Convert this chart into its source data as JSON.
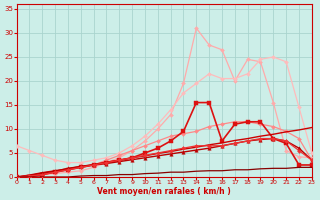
{
  "bg_color": "#cceee8",
  "grid_color": "#aad4ce",
  "xlabel": "Vent moyen/en rafales ( km/h )",
  "xlim": [
    0,
    23
  ],
  "ylim": [
    0,
    36
  ],
  "xticks": [
    0,
    1,
    2,
    3,
    4,
    5,
    6,
    7,
    8,
    9,
    10,
    11,
    12,
    13,
    14,
    15,
    16,
    17,
    18,
    19,
    20,
    21,
    22,
    23
  ],
  "yticks": [
    0,
    5,
    10,
    15,
    20,
    25,
    30,
    35
  ],
  "lines": [
    {
      "x": [
        0,
        1,
        2,
        3,
        4,
        5,
        6,
        7,
        8,
        9,
        10,
        11,
        12,
        13,
        14,
        15,
        16,
        17,
        18,
        19,
        20,
        21,
        22,
        23
      ],
      "y": [
        0,
        0.3,
        0.5,
        0.7,
        1.0,
        1.3,
        2.0,
        3.0,
        4.0,
        5.5,
        7.5,
        10.0,
        13.0,
        19.5,
        31.0,
        27.5,
        26.5,
        20.0,
        24.5,
        24.0,
        15.5,
        5.5,
        4.2,
        4.0
      ],
      "color": "#ffaaaa",
      "lw": 0.9,
      "marker": "D",
      "markersize": 2.0,
      "ls": "-"
    },
    {
      "x": [
        0,
        1,
        2,
        3,
        4,
        5,
        6,
        7,
        8,
        9,
        10,
        11,
        12,
        13,
        14,
        15,
        16,
        17,
        18,
        19,
        20,
        21,
        22,
        23
      ],
      "y": [
        6.5,
        5.5,
        4.5,
        3.5,
        3.0,
        3.0,
        3.5,
        4.0,
        5.0,
        6.5,
        8.5,
        11.0,
        14.0,
        17.5,
        19.5,
        21.5,
        20.5,
        20.5,
        21.5,
        24.5,
        25.0,
        24.0,
        14.5,
        5.0
      ],
      "color": "#ffbbbb",
      "lw": 0.9,
      "marker": "D",
      "markersize": 2.0,
      "ls": "-"
    },
    {
      "x": [
        0,
        1,
        2,
        3,
        4,
        5,
        6,
        7,
        8,
        9,
        10,
        11,
        12,
        13,
        14,
        15,
        16,
        17,
        18,
        19,
        20,
        21,
        22,
        23
      ],
      "y": [
        0,
        0,
        0.5,
        1.0,
        1.5,
        2.0,
        2.5,
        3.5,
        4.5,
        5.5,
        6.5,
        7.5,
        8.5,
        9.0,
        9.5,
        10.5,
        11.0,
        11.5,
        11.5,
        11.0,
        10.5,
        9.5,
        8.0,
        3.5
      ],
      "color": "#ff8888",
      "lw": 0.9,
      "marker": "D",
      "markersize": 2.0,
      "ls": "-"
    },
    {
      "x": [
        0,
        1,
        2,
        3,
        4,
        5,
        6,
        7,
        8,
        9,
        10,
        11,
        12,
        13,
        14,
        15,
        16,
        17,
        18,
        19,
        20,
        21,
        22,
        23
      ],
      "y": [
        0,
        0,
        0.5,
        1.0,
        1.5,
        2.0,
        2.5,
        3.0,
        3.5,
        4.0,
        5.0,
        6.0,
        7.5,
        9.5,
        15.5,
        15.5,
        7.5,
        11.0,
        11.5,
        11.5,
        8.0,
        7.0,
        2.5,
        2.5
      ],
      "color": "#dd1111",
      "lw": 1.2,
      "marker": "s",
      "markersize": 2.5,
      "ls": "-"
    },
    {
      "x": [
        0,
        1,
        2,
        3,
        4,
        5,
        6,
        7,
        8,
        9,
        10,
        11,
        12,
        13,
        14,
        15,
        16,
        17,
        18,
        19,
        20,
        21,
        22,
        23
      ],
      "y": [
        0,
        0.4,
        0.9,
        1.3,
        1.7,
        2.2,
        2.6,
        3.1,
        3.5,
        4.0,
        4.4,
        4.9,
        5.3,
        5.8,
        6.2,
        6.7,
        7.1,
        7.6,
        8.0,
        8.5,
        8.9,
        9.4,
        9.8,
        10.3
      ],
      "color": "#cc0000",
      "lw": 1.0,
      "marker": null,
      "ls": "-"
    },
    {
      "x": [
        0,
        1,
        2,
        3,
        4,
        5,
        6,
        7,
        8,
        9,
        10,
        11,
        12,
        13,
        14,
        15,
        16,
        17,
        18,
        19,
        20,
        21,
        22,
        23
      ],
      "y": [
        0,
        0.3,
        0.8,
        1.2,
        1.8,
        2.2,
        2.5,
        2.8,
        3.2,
        3.6,
        4.0,
        4.4,
        4.8,
        5.2,
        5.6,
        6.0,
        6.5,
        7.0,
        7.5,
        7.8,
        8.0,
        7.5,
        6.0,
        3.5
      ],
      "color": "#bb0000",
      "lw": 1.0,
      "marker": "^",
      "markersize": 2.5,
      "ls": "-"
    },
    {
      "x": [
        0,
        1,
        2,
        3,
        4,
        5,
        6,
        7,
        8,
        9,
        10,
        11,
        12,
        13,
        14,
        15,
        16,
        17,
        18,
        19,
        20,
        21,
        22,
        23
      ],
      "y": [
        0,
        0.2,
        0.5,
        1.0,
        1.5,
        2.0,
        2.5,
        3.0,
        3.5,
        4.0,
        4.5,
        5.0,
        5.5,
        6.0,
        6.5,
        6.5,
        6.5,
        7.0,
        7.5,
        8.0,
        8.0,
        7.5,
        5.5,
        3.5
      ],
      "color": "#ee3333",
      "lw": 0.9,
      "marker": "D",
      "markersize": 2.0,
      "ls": "-"
    },
    {
      "x": [
        0,
        1,
        2,
        3,
        4,
        5,
        6,
        7,
        8,
        9,
        10,
        11,
        12,
        13,
        14,
        15,
        16,
        17,
        18,
        19,
        20,
        21,
        22,
        23
      ],
      "y": [
        0,
        0,
        0,
        0,
        0,
        0.2,
        0.3,
        0.3,
        0.5,
        0.5,
        0.7,
        0.8,
        1.0,
        1.0,
        1.2,
        1.3,
        1.3,
        1.5,
        1.5,
        1.7,
        1.8,
        1.8,
        2.0,
        2.0
      ],
      "color": "#880000",
      "lw": 0.9,
      "marker": null,
      "ls": "-"
    }
  ]
}
